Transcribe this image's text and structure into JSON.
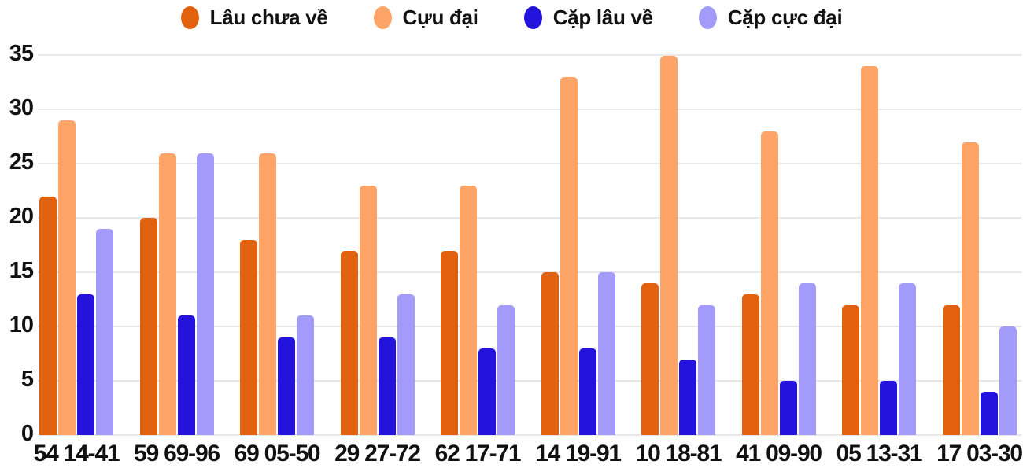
{
  "chart_data": {
    "type": "bar",
    "title": "",
    "xlabel": "",
    "ylabel": "",
    "categories": [
      "54 14-41",
      "59 69-96",
      "69 05-50",
      "29 27-72",
      "62 17-71",
      "14 19-91",
      "10 18-81",
      "41 09-90",
      "05 13-31",
      "17 03-30"
    ],
    "series": [
      {
        "name": "Lâu chưa về",
        "color": "#e2610f",
        "values": [
          22,
          20,
          18,
          17,
          17,
          15,
          14,
          13,
          12,
          12
        ]
      },
      {
        "name": "Cựu đại",
        "color": "#fda466",
        "values": [
          29,
          26,
          26,
          23,
          23,
          33,
          35,
          28,
          34,
          27
        ]
      },
      {
        "name": "Cặp lâu về",
        "color": "#2412dd",
        "values": [
          13,
          11,
          9,
          9,
          8,
          8,
          7,
          5,
          5,
          4
        ]
      },
      {
        "name": "Cặp cực đại",
        "color": "#a29bf9",
        "values": [
          19,
          26,
          11,
          13,
          12,
          15,
          12,
          14,
          14,
          10
        ]
      }
    ],
    "ylim": [
      0,
      35
    ],
    "yticks": [
      0,
      5,
      10,
      15,
      20,
      25,
      30,
      35
    ],
    "grid": true,
    "legend_position": "top",
    "background_color": "#ffffff",
    "text_color": "#111111",
    "gridline_color": "#e8e8e8"
  }
}
